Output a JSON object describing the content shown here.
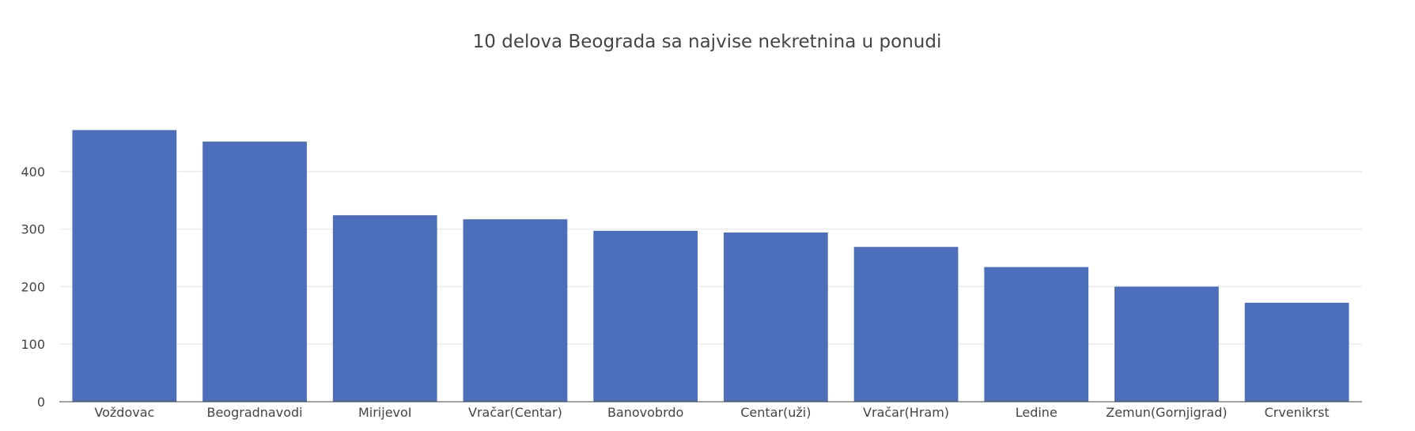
{
  "chart_data": {
    "type": "bar",
    "title": "10 delova Beograda sa najvise nekretnina u ponudi",
    "xlabel": "",
    "ylabel": "",
    "categories": [
      "Voždovac",
      "Beogradnavodi",
      "MirijevoI",
      "Vračar(Centar)",
      "Banovobrdo",
      "Centar(uži)",
      "Vračar(Hram)",
      "Ledine",
      "Zemun(Gornjigrad)",
      "Crvenikrst"
    ],
    "values": [
      472,
      452,
      324,
      317,
      297,
      294,
      269,
      234,
      200,
      172
    ],
    "ylim": [
      0,
      496
    ],
    "yticks": [
      0,
      100,
      200,
      300,
      400
    ],
    "grid": true,
    "legend": "none",
    "colors": {
      "bar": "#4c6ebb",
      "grid": "#ececec",
      "axis": "#444444",
      "text": "#444444"
    }
  }
}
